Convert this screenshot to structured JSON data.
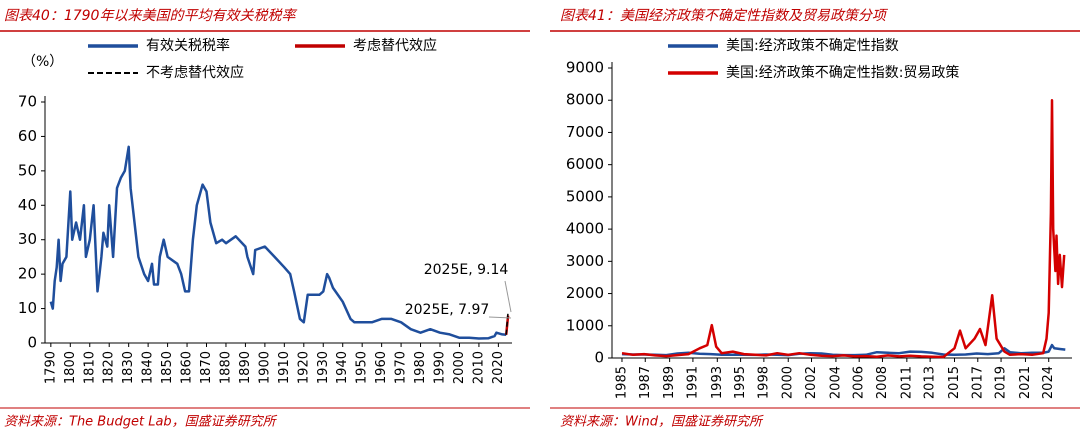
{
  "chart_data": [
    {
      "type": "line",
      "title": "图表40：1790年以来美国的平均有效关税税率",
      "ylabel": "（%）",
      "source": "资料来源：The Budget Lab，国盛证券研究所",
      "xlim": [
        1787,
        2027
      ],
      "xticks": [
        1790,
        1800,
        1810,
        1820,
        1830,
        1840,
        1850,
        1860,
        1870,
        1880,
        1890,
        1900,
        1910,
        1920,
        1930,
        1940,
        1950,
        1960,
        1970,
        1980,
        1990,
        2000,
        2010,
        2020
      ],
      "ylim": [
        0,
        70
      ],
      "yticks": [
        0,
        10,
        20,
        30,
        40,
        50,
        60,
        70
      ],
      "annotations": [
        "2025E, 9.14",
        "2025E, 7.97"
      ],
      "series": [
        {
          "name": "有效关税税率",
          "color": "#1f4e9c",
          "x": [
            1790,
            1791,
            1792,
            1793,
            1794,
            1795,
            1796,
            1798,
            1800,
            1801,
            1803,
            1805,
            1807,
            1808,
            1810,
            1812,
            1814,
            1815,
            1816,
            1817,
            1819,
            1820,
            1822,
            1824,
            1826,
            1828,
            1830,
            1831,
            1833,
            1835,
            1838,
            1840,
            1842,
            1843,
            1845,
            1846,
            1848,
            1850,
            1855,
            1857,
            1859,
            1861,
            1863,
            1865,
            1868,
            1870,
            1872,
            1875,
            1878,
            1880,
            1885,
            1890,
            1891,
            1894,
            1895,
            1900,
            1905,
            1910,
            1913,
            1915,
            1918,
            1920,
            1922,
            1925,
            1928,
            1930,
            1932,
            1933,
            1935,
            1940,
            1944,
            1946,
            1950,
            1955,
            1960,
            1965,
            1970,
            1975,
            1980,
            1985,
            1990,
            1995,
            2000,
            2005,
            2010,
            2015,
            2018,
            2019,
            2022,
            2024
          ],
          "values": [
            12,
            10,
            18,
            22,
            30,
            18,
            23,
            25,
            44,
            30,
            35,
            30,
            40,
            25,
            30,
            40,
            15,
            20,
            25,
            32,
            28,
            40,
            25,
            45,
            48,
            50,
            57,
            45,
            35,
            25,
            20,
            18,
            23,
            17,
            17,
            25,
            30,
            25,
            23,
            20,
            15,
            15,
            30,
            40,
            46,
            44,
            35,
            29,
            30,
            29,
            31,
            28,
            25,
            20,
            27,
            28,
            25,
            22,
            20,
            15,
            7,
            6,
            14,
            14,
            14,
            15,
            20,
            19,
            16,
            12,
            7,
            6,
            6,
            6,
            7,
            7,
            6,
            4,
            3,
            4,
            3,
            2.5,
            1.5,
            1.5,
            1.3,
            1.4,
            2,
            3,
            2.5,
            2.4
          ]
        },
        {
          "name": "考虑替代效应",
          "color": "#c00000",
          "x": [
            2024,
            2025
          ],
          "values": [
            2.4,
            7.97
          ]
        },
        {
          "name": "不考虑替代效应",
          "color": "#000000",
          "dash": true,
          "x": [
            2024,
            2025
          ],
          "values": [
            2.4,
            9.14
          ]
        }
      ]
    },
    {
      "type": "line",
      "title": "图表41：美国经济政策不确定性指数及贸易政策分项",
      "source": "资料来源：Wind，国盛证券研究所",
      "xlim": [
        1984.1,
        2025.6
      ],
      "xticks": [
        {
          "value": 1985,
          "label": "1985"
        },
        {
          "value": 1987.1,
          "label": "1987"
        },
        {
          "value": 1989.3,
          "label": "1989"
        },
        {
          "value": 1991.4,
          "label": "1991"
        },
        {
          "value": 1993.6,
          "label": "1993"
        },
        {
          "value": 1995.7,
          "label": "1995"
        },
        {
          "value": 1997.8,
          "label": "1998"
        },
        {
          "value": 2000,
          "label": "2000"
        },
        {
          "value": 2002.1,
          "label": "2002"
        },
        {
          "value": 2004.3,
          "label": "2004"
        },
        {
          "value": 2006.4,
          "label": "2006"
        },
        {
          "value": 2008.5,
          "label": "2008"
        },
        {
          "value": 2010.7,
          "label": "2011"
        },
        {
          "value": 2012.8,
          "label": "2013"
        },
        {
          "value": 2015,
          "label": "2015"
        },
        {
          "value": 2017.1,
          "label": "2017"
        },
        {
          "value": 2019.2,
          "label": "2019"
        },
        {
          "value": 2021.4,
          "label": "2021"
        },
        {
          "value": 2023.5,
          "label": "2024"
        }
      ],
      "ylim": [
        0,
        9000
      ],
      "yticks": [
        0,
        1000,
        2000,
        3000,
        4000,
        5000,
        6000,
        7000,
        8000,
        9000
      ],
      "series": [
        {
          "name": "美国:经济政策不确定性指数",
          "color": "#1f4e9c",
          "x": [
            1985,
            1986,
            1987,
            1988,
            1989,
            1990,
            1991,
            1992,
            1993,
            1994,
            1995,
            1996,
            1997,
            1998,
            1999,
            2000,
            2001,
            2002,
            2003,
            2004,
            2005,
            2006,
            2007,
            2008,
            2009,
            2010,
            2011,
            2012,
            2013,
            2014,
            2015,
            2016,
            2017,
            2018,
            2019,
            2019.5,
            2020,
            2021,
            2022,
            2023,
            2023.5,
            2023.8,
            2024,
            2024.5,
            2025
          ],
          "values": [
            120,
            110,
            110,
            100,
            90,
            140,
            160,
            130,
            120,
            100,
            100,
            100,
            95,
            110,
            100,
            90,
            130,
            150,
            140,
            100,
            90,
            90,
            100,
            180,
            160,
            150,
            200,
            190,
            160,
            110,
            100,
            110,
            140,
            120,
            150,
            300,
            180,
            150,
            160,
            160,
            200,
            400,
            300,
            280,
            260
          ]
        },
        {
          "name": "美国:经济政策不确定性指数:贸易政策",
          "color": "#d40000",
          "x": [
            1985,
            1986,
            1987,
            1988,
            1989,
            1990,
            1991,
            1992,
            1992.7,
            1993.1,
            1993.5,
            1994,
            1995,
            1996,
            1997,
            1998,
            1999,
            2000,
            2001,
            2002,
            2003,
            2004,
            2005,
            2006,
            2007,
            2008,
            2009,
            2010,
            2011,
            2012,
            2013,
            2014,
            2015,
            2015.5,
            2016,
            2016.8,
            2017.3,
            2017.8,
            2018.4,
            2018.8,
            2019.5,
            2020,
            2021,
            2022,
            2023,
            2023.3,
            2023.5,
            2023.7,
            2023.8,
            2023.9,
            2024.1,
            2024.2,
            2024.35,
            2024.5,
            2024.7,
            2024.9
          ],
          "values": [
            150,
            100,
            120,
            80,
            60,
            90,
            120,
            300,
            400,
            1020,
            350,
            150,
            200,
            120,
            100,
            80,
            150,
            100,
            150,
            100,
            70,
            60,
            80,
            50,
            60,
            40,
            80,
            50,
            70,
            50,
            40,
            30,
            300,
            850,
            300,
            600,
            900,
            400,
            1950,
            600,
            200,
            100,
            120,
            100,
            150,
            600,
            1400,
            4500,
            8000,
            4000,
            2700,
            3800,
            2300,
            3200,
            2200,
            3200
          ]
        }
      ]
    }
  ]
}
